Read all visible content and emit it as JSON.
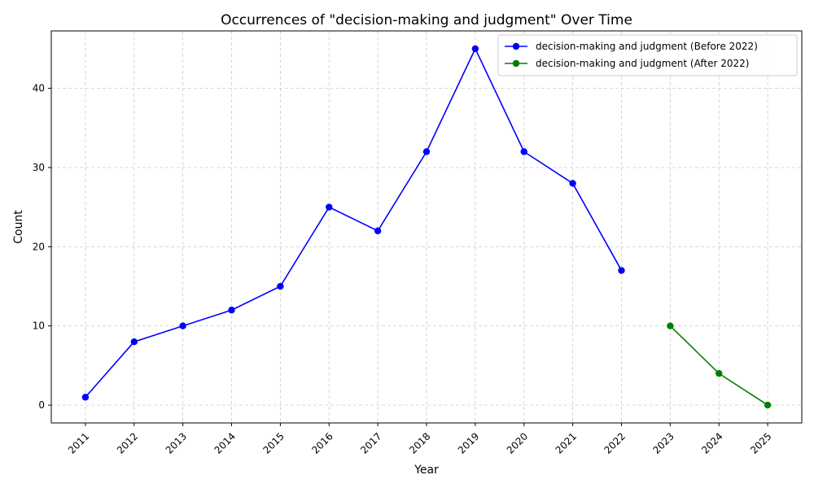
{
  "chart_data": {
    "type": "line",
    "title": "Occurrences of \"decision-making and judgment\" Over Time",
    "xlabel": "Year",
    "ylabel": "Count",
    "categories": [
      "2011",
      "2012",
      "2013",
      "2014",
      "2015",
      "2016",
      "2017",
      "2018",
      "2019",
      "2020",
      "2021",
      "2022",
      "2023",
      "2024",
      "2025"
    ],
    "ylim": [
      -2.25,
      47.25
    ],
    "yticks": [
      0,
      10,
      20,
      30,
      40
    ],
    "grid": true,
    "legend_position": "top-right",
    "series": [
      {
        "name": "decision-making and judgment (Before 2022)",
        "color": "#0000ff",
        "x": [
          "2011",
          "2012",
          "2013",
          "2014",
          "2015",
          "2016",
          "2017",
          "2018",
          "2019",
          "2020",
          "2021",
          "2022"
        ],
        "values": [
          1,
          8,
          10,
          12,
          15,
          25,
          22,
          32,
          45,
          32,
          28,
          17
        ]
      },
      {
        "name": "decision-making and judgment (After 2022)",
        "color": "#008000",
        "x": [
          "2023",
          "2024",
          "2025"
        ],
        "values": [
          10,
          4,
          0
        ]
      }
    ]
  }
}
